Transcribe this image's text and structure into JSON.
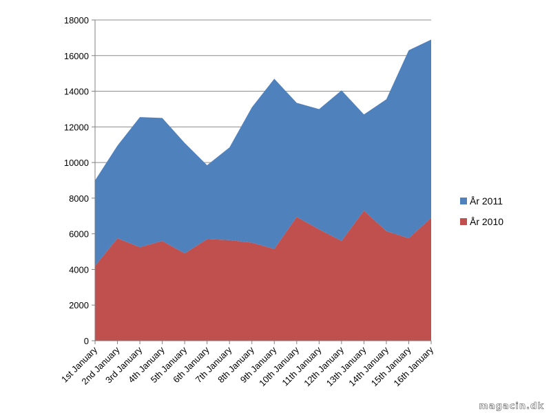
{
  "chart_data": {
    "type": "area",
    "stacked": true,
    "categories": [
      "1st January",
      "2nd January",
      "3rd January",
      "4th January",
      "5th January",
      "6th January",
      "7th January",
      "8th January",
      "9th January",
      "10th January",
      "11th January",
      "12th January",
      "13th January",
      "14th January",
      "15th January",
      "16th January"
    ],
    "series": [
      {
        "name": "År 2010",
        "color": "#c0504d",
        "values": [
          4200,
          5750,
          5250,
          5600,
          4900,
          5700,
          5650,
          5500,
          5150,
          6950,
          6250,
          5600,
          7300,
          6150,
          5750,
          6900
        ]
      },
      {
        "name": "År 2011",
        "color": "#4f81bd",
        "values": [
          4800,
          5200,
          7300,
          6900,
          6200,
          4150,
          5200,
          7600,
          9550,
          6400,
          6750,
          8450,
          5400,
          7400,
          10550,
          10000
        ]
      }
    ],
    "legend_order": [
      "År 2011",
      "År 2010"
    ],
    "ylim": [
      0,
      18000
    ],
    "yticks": [
      0,
      2000,
      4000,
      6000,
      8000,
      10000,
      12000,
      14000,
      16000,
      18000
    ],
    "grid": true,
    "legend_position": "right",
    "title": "",
    "xlabel": "",
    "ylabel": ""
  },
  "watermark": "magacin.dk"
}
